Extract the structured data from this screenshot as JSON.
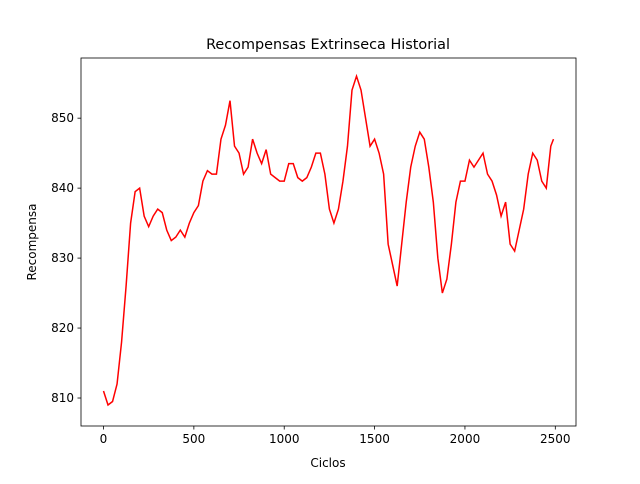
{
  "chart_data": {
    "type": "line",
    "title": "Recompensas Extrinseca Historial",
    "xlabel": "Ciclos",
    "ylabel": "Recompensa",
    "x": [
      0,
      25,
      50,
      75,
      100,
      125,
      150,
      175,
      200,
      225,
      250,
      275,
      300,
      325,
      350,
      375,
      400,
      425,
      450,
      475,
      500,
      525,
      550,
      575,
      600,
      625,
      650,
      675,
      700,
      725,
      750,
      775,
      800,
      825,
      850,
      875,
      900,
      925,
      950,
      975,
      1000,
      1025,
      1050,
      1075,
      1100,
      1125,
      1150,
      1175,
      1200,
      1225,
      1250,
      1275,
      1300,
      1325,
      1350,
      1375,
      1400,
      1425,
      1450,
      1475,
      1500,
      1525,
      1550,
      1575,
      1600,
      1625,
      1650,
      1675,
      1700,
      1725,
      1750,
      1775,
      1800,
      1825,
      1850,
      1875,
      1900,
      1925,
      1950,
      1975,
      2000,
      2025,
      2050,
      2075,
      2100,
      2125,
      2150,
      2175,
      2200,
      2225,
      2250,
      2275,
      2300,
      2325,
      2350,
      2375,
      2400,
      2425,
      2450,
      2475,
      2490
    ],
    "series": [
      {
        "name": "Recompensa",
        "color": "#ff0000",
        "values": [
          811,
          809,
          809.5,
          812,
          818,
          826,
          835,
          839.5,
          840,
          836,
          834.5,
          836,
          837,
          836.5,
          834,
          832.5,
          833,
          834,
          833,
          835,
          836.5,
          837.5,
          841,
          842.5,
          842,
          842,
          847,
          849,
          852.5,
          846,
          845,
          842,
          843,
          847,
          845,
          843.5,
          845.5,
          842,
          841.5,
          841,
          841,
          843.5,
          843.5,
          841.5,
          841,
          841.5,
          843,
          845,
          845,
          842,
          837,
          835,
          837,
          841,
          846,
          854,
          856,
          854,
          850,
          846,
          847,
          845,
          842,
          832,
          829,
          826,
          832,
          838,
          843,
          846,
          848,
          847,
          843,
          838,
          830,
          825,
          827,
          832,
          838,
          841,
          841,
          844,
          843,
          844,
          845,
          842,
          841,
          839,
          836,
          838,
          832,
          831,
          834,
          837,
          842,
          845,
          844,
          841,
          840,
          846,
          847
        ]
      }
    ],
    "xlim": [
      -124.5,
      2614.5
    ],
    "ylim": [
      806,
      858.6
    ],
    "xticks": [
      0,
      500,
      1000,
      1500,
      2000,
      2500
    ],
    "yticks": [
      810,
      820,
      830,
      840,
      850
    ],
    "grid": false
  }
}
